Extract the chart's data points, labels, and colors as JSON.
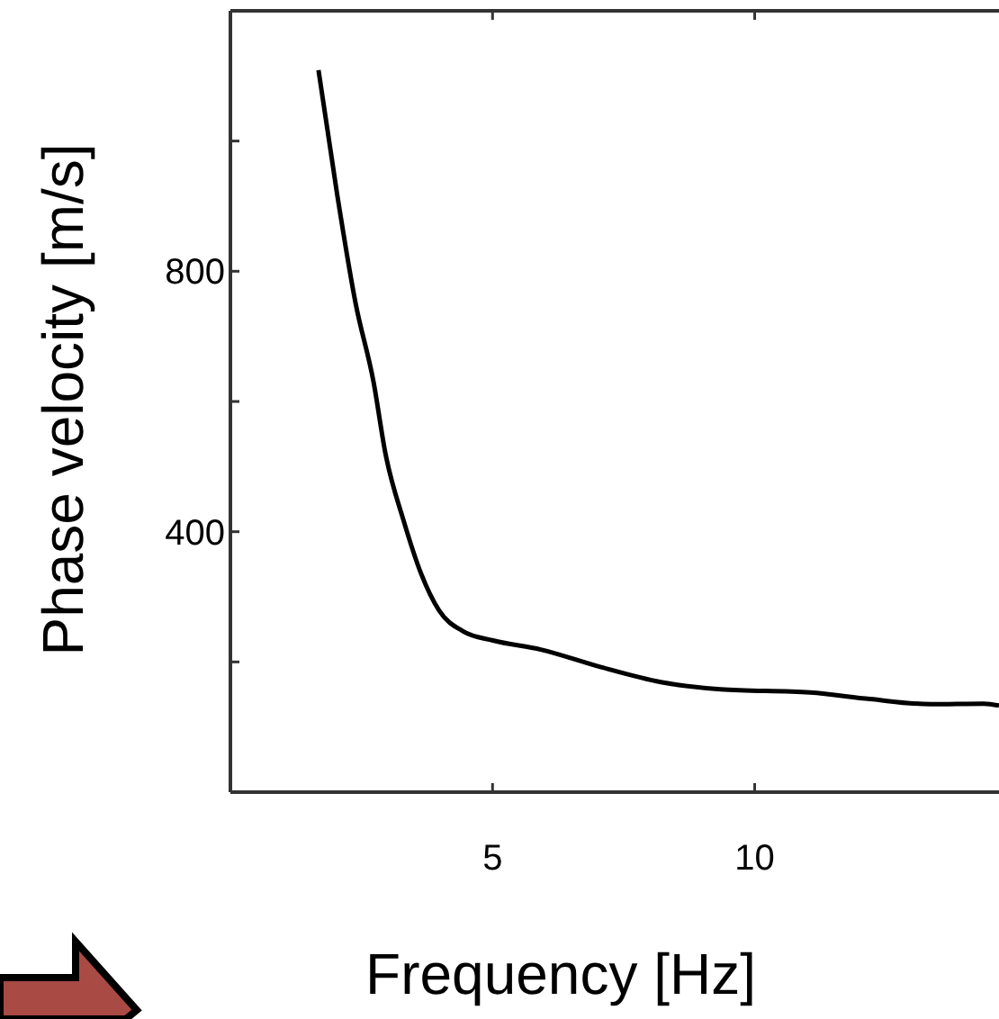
{
  "chart_data": {
    "type": "line",
    "xlabel": "Frequency [Hz]",
    "ylabel": "Phase velocity [m/s]",
    "x": [
      1.68,
      2.04,
      2.39,
      2.73,
      2.96,
      3.3,
      3.64,
      3.98,
      4.44,
      5.01,
      5.92,
      7.07,
      8.21,
      9.35,
      11.06,
      12.2,
      13.35,
      14.37,
      14.66
    ],
    "series": [
      {
        "color": "#000000",
        "values": [
          1109,
          916,
          750,
          630,
          519,
          418,
          335,
          279,
          247,
          233,
          219,
          192,
          169,
          158,
          153,
          143,
          135,
          136,
          133
        ]
      }
    ],
    "xlim": [
      0,
      14.66
    ],
    "ylim": [
      0,
      1200
    ],
    "xticks": [
      5,
      10
    ],
    "yticks": [
      {
        "value": 200,
        "label": null
      },
      {
        "value": 400,
        "label": "400"
      },
      {
        "value": 600,
        "label": null
      },
      {
        "value": 800,
        "label": "800"
      },
      {
        "value": 1000,
        "label": null
      }
    ],
    "grid": false,
    "marker": "none",
    "line_style": "solid"
  }
}
